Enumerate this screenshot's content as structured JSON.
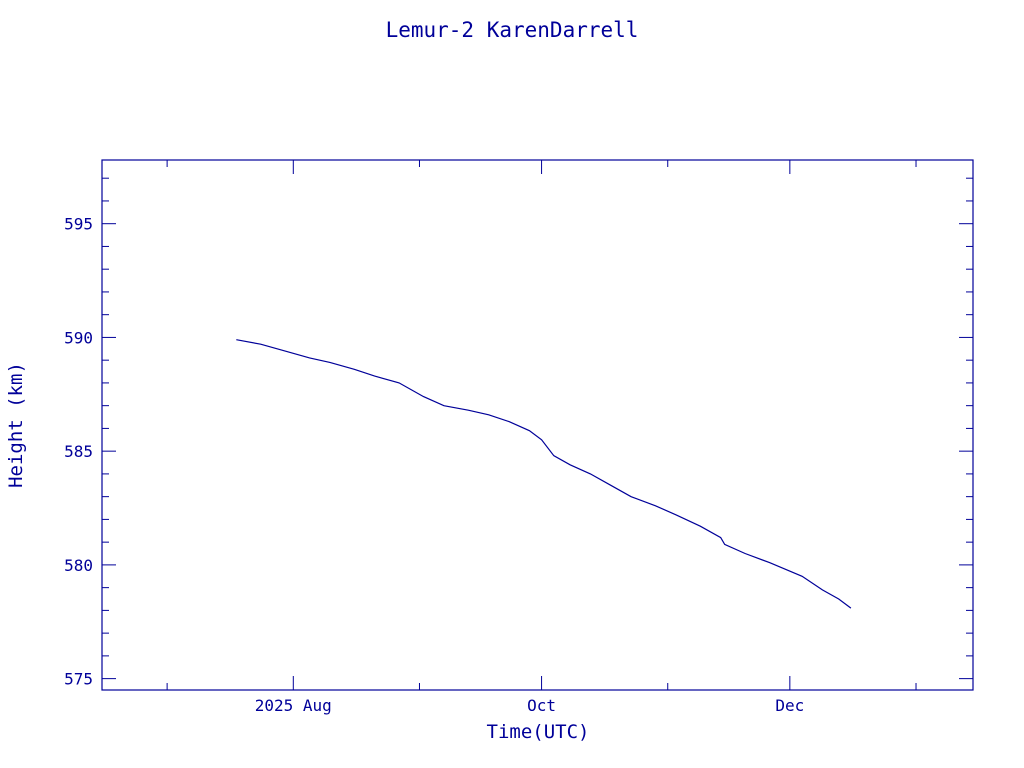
{
  "colors": {
    "ink": "#000099",
    "background": "#ffffff"
  },
  "chart_data": {
    "type": "line",
    "title": "Lemur-2 KarenDarrell",
    "xlabel": "Time(UTC)",
    "ylabel": "Height (km)",
    "xlim": [
      "2025-06-15",
      "2026-01-15"
    ],
    "ylim": [
      574.5,
      597.8
    ],
    "y_ticks": [
      575,
      580,
      585,
      590,
      595
    ],
    "x_ticks": [
      {
        "date": "2025-08-01",
        "label": "2025 Aug"
      },
      {
        "date": "2025-10-01",
        "label": "Oct"
      },
      {
        "date": "2025-12-01",
        "label": "Dec"
      }
    ],
    "x_minor_ticks": [
      "2025-07-01",
      "2025-09-01",
      "2025-11-01",
      "2026-01-01"
    ],
    "grid": false,
    "legend": "none",
    "series": [
      {
        "x": [
          "2025-07-18",
          "2025-07-24",
          "2025-07-30",
          "2025-08-05",
          "2025-08-10",
          "2025-08-16",
          "2025-08-21",
          "2025-08-27",
          "2025-09-02",
          "2025-09-07",
          "2025-09-13",
          "2025-09-18",
          "2025-09-23",
          "2025-09-28",
          "2025-10-01",
          "2025-10-04",
          "2025-10-08",
          "2025-10-13",
          "2025-10-18",
          "2025-10-23",
          "2025-10-29",
          "2025-11-03",
          "2025-11-09",
          "2025-11-14",
          "2025-11-15",
          "2025-11-20",
          "2025-11-26",
          "2025-12-04",
          "2025-12-09",
          "2025-12-13",
          "2025-12-16"
        ],
        "y": [
          589.9,
          589.7,
          589.4,
          589.1,
          588.9,
          588.6,
          588.3,
          588.0,
          587.4,
          587.0,
          586.8,
          586.6,
          586.3,
          585.9,
          585.5,
          584.8,
          584.4,
          584.0,
          583.5,
          583.0,
          582.6,
          582.2,
          581.7,
          581.2,
          580.9,
          580.5,
          580.1,
          579.5,
          578.9,
          578.5,
          578.1
        ]
      }
    ]
  }
}
